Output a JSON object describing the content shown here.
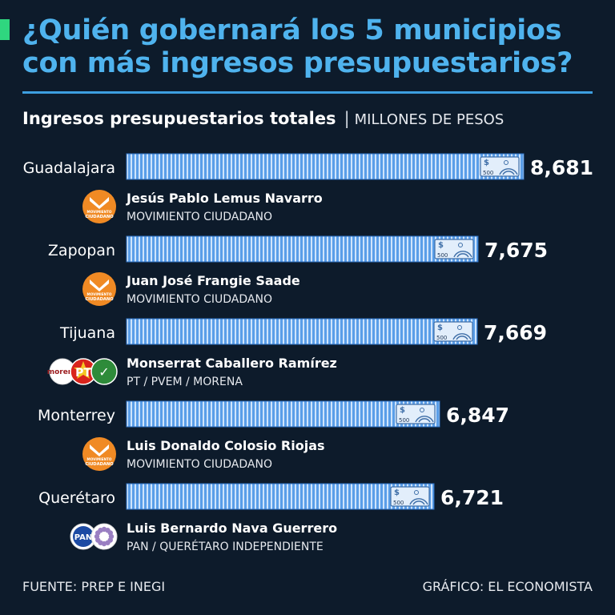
{
  "header": {
    "title": "¿Quién gobernará los 5 municipios con más ingresos presupuestarios?",
    "subtitle": "Ingresos presupuestarios totales",
    "unit": "MILLONES DE PESOS"
  },
  "colors": {
    "background": "#0d1b2b",
    "title": "#4fb3ee",
    "bar_fill": "#5a9ee8",
    "bar_stripe": "#cfe4fb",
    "mc_orange": "#f08a24",
    "morena": "#9b1b1e",
    "pt_red": "#d9241c",
    "pvem_green": "#2e8b3a",
    "pan_blue": "#1c4aa3",
    "qro_purple": "#9a7fc2"
  },
  "chart_data": {
    "type": "bar",
    "orientation": "horizontal",
    "title": "Ingresos presupuestarios totales",
    "unit": "MILLONES DE PESOS",
    "categories": [
      "Guadalajara",
      "Zapopan",
      "Tijuana",
      "Monterrey",
      "Querétaro"
    ],
    "values": [
      8681,
      7675,
      7669,
      6847,
      6721
    ],
    "value_labels": [
      "8,681",
      "7,675",
      "7,669",
      "6,847",
      "6,721"
    ],
    "winners": [
      {
        "name": "Jesús Pablo Lemus Navarro",
        "party": "MOVIMIENTO CIUDADANO",
        "logos": [
          "mc"
        ]
      },
      {
        "name": "Juan José Frangie Saade",
        "party": "MOVIMIENTO CIUDADANO",
        "logos": [
          "mc"
        ]
      },
      {
        "name": "Monserrat Caballero Ramírez",
        "party": "PT / PVEM / MORENA",
        "logos": [
          "morena",
          "pt",
          "pvem"
        ]
      },
      {
        "name": "Luis Donaldo Colosio Riojas",
        "party": "MOVIMIENTO CIUDADANO",
        "logos": [
          "mc"
        ]
      },
      {
        "name": "Luis Bernardo Nava Guerrero",
        "party": "PAN / QUERÉTARO INDEPENDIENTE",
        "logos": [
          "pan",
          "qi"
        ]
      }
    ],
    "logo_text": {
      "mc": [
        "MOVIMIENTO",
        "CIUDADANO"
      ],
      "morena": "morena",
      "pt": "PT",
      "pvem": "✓",
      "pan": "PAN"
    },
    "banknote_label": "500",
    "currency_symbol": "$"
  },
  "footer": {
    "source": "FUENTE: PREP E INEGI",
    "credit": "GRÁFICO: EL ECONOMISTA"
  }
}
